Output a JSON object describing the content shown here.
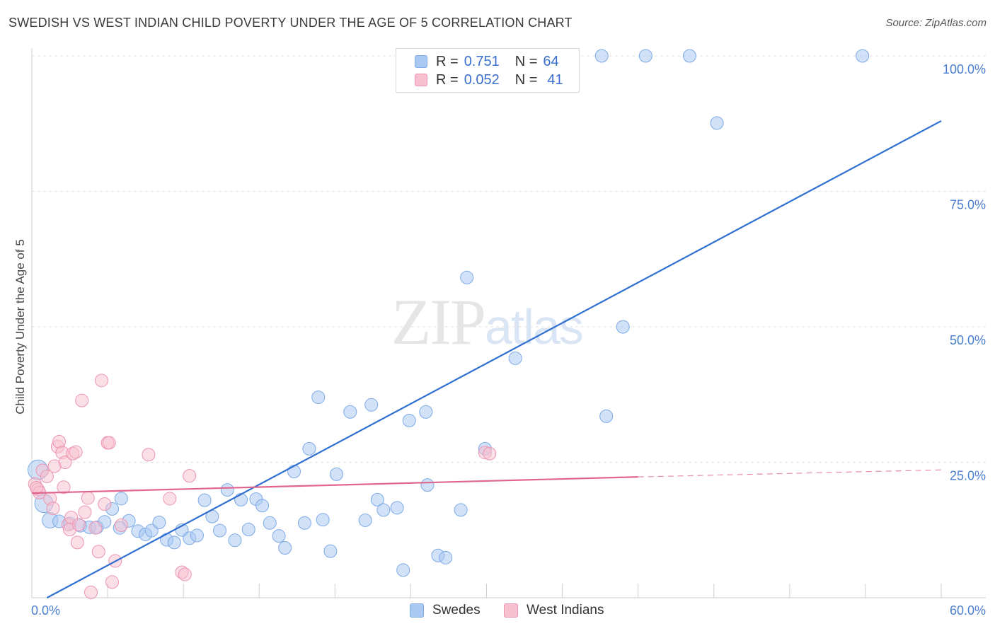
{
  "header": {
    "title": "SWEDISH VS WEST INDIAN CHILD POVERTY UNDER THE AGE OF 5 CORRELATION CHART",
    "source": "Source: ZipAtlas.com"
  },
  "watermark": {
    "zip": "ZIP",
    "atlas": "atlas"
  },
  "legend": {
    "rows": [
      {
        "r_label": "R =",
        "r_value": "0.751",
        "n_label": "N =",
        "n_value": "64",
        "color": "#a9c8f2",
        "border": "#7eaae6"
      },
      {
        "r_label": "R =",
        "r_value": "0.052",
        "n_label": "N =",
        "n_value": "41",
        "color": "#f7bfd0",
        "border": "#ec94b0"
      }
    ]
  },
  "bottom_legend": {
    "items": [
      {
        "label": "Swedes",
        "color": "#a9c8f2",
        "border": "#7eaae6"
      },
      {
        "label": "West Indians",
        "color": "#f7bfd0",
        "border": "#ec94b0"
      }
    ]
  },
  "chart_data": {
    "type": "scatter",
    "title": "SWEDISH VS WEST INDIAN CHILD POVERTY UNDER THE AGE OF 5 CORRELATION CHART",
    "xlabel": "",
    "ylabel": "Child Poverty Under the Age of 5",
    "xlim": [
      0,
      60
    ],
    "ylim": [
      0,
      100
    ],
    "x_tick_labels": [
      "0.0%",
      "60.0%"
    ],
    "y_ticks": [
      25,
      50,
      75,
      100
    ],
    "y_tick_labels": [
      "25.0%",
      "50.0%",
      "75.0%",
      "100.0%"
    ],
    "grid": true,
    "legend_position": "top-center",
    "series": [
      {
        "name": "Swedes",
        "color": "#7eaae6",
        "fill": "rgba(169,200,242,0.55)",
        "trend_line": {
          "x": [
            1,
            60
          ],
          "y": [
            0,
            88
          ]
        },
        "points": [
          {
            "x": 0.4,
            "y": 23.6,
            "r": 14
          },
          {
            "x": 0.8,
            "y": 17.4,
            "r": 13
          },
          {
            "x": 1.2,
            "y": 14.3,
            "r": 11
          },
          {
            "x": 1.8,
            "y": 14.1,
            "r": 9
          },
          {
            "x": 2.5,
            "y": 13.7,
            "r": 9
          },
          {
            "x": 3.2,
            "y": 13.3,
            "r": 9
          },
          {
            "x": 3.8,
            "y": 13.0,
            "r": 9
          },
          {
            "x": 4.3,
            "y": 13.0,
            "r": 9
          },
          {
            "x": 4.8,
            "y": 14.0,
            "r": 9
          },
          {
            "x": 5.3,
            "y": 16.4,
            "r": 9
          },
          {
            "x": 5.9,
            "y": 18.3,
            "r": 9
          },
          {
            "x": 6.4,
            "y": 14.2,
            "r": 9
          },
          {
            "x": 7.0,
            "y": 12.3,
            "r": 9
          },
          {
            "x": 7.5,
            "y": 11.7,
            "r": 9
          },
          {
            "x": 7.9,
            "y": 12.4,
            "r": 9
          },
          {
            "x": 8.4,
            "y": 13.9,
            "r": 9
          },
          {
            "x": 8.9,
            "y": 10.7,
            "r": 9
          },
          {
            "x": 9.4,
            "y": 10.2,
            "r": 9
          },
          {
            "x": 9.9,
            "y": 12.5,
            "r": 9
          },
          {
            "x": 10.4,
            "y": 11.0,
            "r": 9
          },
          {
            "x": 10.9,
            "y": 11.5,
            "r": 9
          },
          {
            "x": 11.4,
            "y": 18.0,
            "r": 9
          },
          {
            "x": 11.9,
            "y": 15.0,
            "r": 9
          },
          {
            "x": 12.4,
            "y": 12.4,
            "r": 9
          },
          {
            "x": 12.9,
            "y": 19.9,
            "r": 9
          },
          {
            "x": 13.4,
            "y": 10.6,
            "r": 9
          },
          {
            "x": 13.8,
            "y": 18.1,
            "r": 9
          },
          {
            "x": 14.3,
            "y": 12.6,
            "r": 9
          },
          {
            "x": 14.8,
            "y": 18.2,
            "r": 9
          },
          {
            "x": 15.2,
            "y": 17.0,
            "r": 9
          },
          {
            "x": 15.7,
            "y": 13.8,
            "r": 9
          },
          {
            "x": 16.3,
            "y": 11.4,
            "r": 9
          },
          {
            "x": 16.7,
            "y": 9.2,
            "r": 9
          },
          {
            "x": 17.3,
            "y": 23.3,
            "r": 9
          },
          {
            "x": 18.0,
            "y": 13.8,
            "r": 9
          },
          {
            "x": 18.3,
            "y": 27.5,
            "r": 9
          },
          {
            "x": 18.9,
            "y": 37.0,
            "r": 9
          },
          {
            "x": 19.2,
            "y": 14.4,
            "r": 9
          },
          {
            "x": 19.7,
            "y": 8.6,
            "r": 9
          },
          {
            "x": 20.1,
            "y": 22.8,
            "r": 9
          },
          {
            "x": 21.0,
            "y": 34.3,
            "r": 9
          },
          {
            "x": 22.0,
            "y": 14.3,
            "r": 9
          },
          {
            "x": 22.4,
            "y": 35.6,
            "r": 9
          },
          {
            "x": 22.8,
            "y": 18.1,
            "r": 9
          },
          {
            "x": 23.2,
            "y": 16.2,
            "r": 9
          },
          {
            "x": 24.1,
            "y": 16.6,
            "r": 9
          },
          {
            "x": 24.5,
            "y": 5.1,
            "r": 9
          },
          {
            "x": 24.9,
            "y": 32.7,
            "r": 9
          },
          {
            "x": 26.0,
            "y": 34.3,
            "r": 9
          },
          {
            "x": 26.1,
            "y": 20.8,
            "r": 9
          },
          {
            "x": 26.8,
            "y": 7.8,
            "r": 9
          },
          {
            "x": 27.3,
            "y": 7.4,
            "r": 9
          },
          {
            "x": 28.3,
            "y": 16.2,
            "r": 9
          },
          {
            "x": 28.7,
            "y": 59.1,
            "r": 9
          },
          {
            "x": 29.9,
            "y": 27.5,
            "r": 9
          },
          {
            "x": 31.9,
            "y": 44.2,
            "r": 9
          },
          {
            "x": 37.6,
            "y": 100,
            "r": 9
          },
          {
            "x": 37.9,
            "y": 33.5,
            "r": 9
          },
          {
            "x": 39.0,
            "y": 50.0,
            "r": 9
          },
          {
            "x": 40.5,
            "y": 100,
            "r": 9
          },
          {
            "x": 43.4,
            "y": 100,
            "r": 9
          },
          {
            "x": 45.2,
            "y": 87.6,
            "r": 9
          },
          {
            "x": 54.8,
            "y": 100,
            "r": 9
          },
          {
            "x": 5.8,
            "y": 12.9,
            "r": 9
          }
        ]
      },
      {
        "name": "West Indians",
        "color": "#ec94b0",
        "fill": "rgba(247,191,208,0.50)",
        "trend_line": {
          "x": [
            0,
            40
          ],
          "y": [
            19.3,
            22.3
          ]
        },
        "trend_line_dashed": {
          "x": [
            40,
            60
          ],
          "y": [
            22.3,
            23.6
          ]
        },
        "points": [
          {
            "x": 0.2,
            "y": 21.0,
            "r": 9
          },
          {
            "x": 0.4,
            "y": 20.0,
            "r": 9
          },
          {
            "x": 0.5,
            "y": 19.4,
            "r": 9
          },
          {
            "x": 0.7,
            "y": 23.5,
            "r": 9
          },
          {
            "x": 1.0,
            "y": 22.4,
            "r": 9
          },
          {
            "x": 1.2,
            "y": 18.3,
            "r": 9
          },
          {
            "x": 1.4,
            "y": 16.5,
            "r": 9
          },
          {
            "x": 1.5,
            "y": 24.3,
            "r": 9
          },
          {
            "x": 1.7,
            "y": 27.9,
            "r": 9
          },
          {
            "x": 1.8,
            "y": 28.8,
            "r": 9
          },
          {
            "x": 2.0,
            "y": 26.8,
            "r": 9
          },
          {
            "x": 2.1,
            "y": 20.4,
            "r": 9
          },
          {
            "x": 2.2,
            "y": 25.0,
            "r": 9
          },
          {
            "x": 2.4,
            "y": 13.5,
            "r": 9
          },
          {
            "x": 2.5,
            "y": 12.6,
            "r": 9
          },
          {
            "x": 2.6,
            "y": 14.8,
            "r": 9
          },
          {
            "x": 2.7,
            "y": 26.6,
            "r": 9
          },
          {
            "x": 2.9,
            "y": 26.9,
            "r": 9
          },
          {
            "x": 3.0,
            "y": 10.2,
            "r": 9
          },
          {
            "x": 3.1,
            "y": 13.5,
            "r": 9
          },
          {
            "x": 3.3,
            "y": 36.4,
            "r": 9
          },
          {
            "x": 3.5,
            "y": 15.8,
            "r": 9
          },
          {
            "x": 3.7,
            "y": 18.4,
            "r": 9
          },
          {
            "x": 3.9,
            "y": 1.0,
            "r": 9
          },
          {
            "x": 4.2,
            "y": 12.9,
            "r": 9
          },
          {
            "x": 4.4,
            "y": 8.5,
            "r": 9
          },
          {
            "x": 4.6,
            "y": 40.1,
            "r": 9
          },
          {
            "x": 4.8,
            "y": 17.3,
            "r": 9
          },
          {
            "x": 5.0,
            "y": 28.6,
            "r": 9
          },
          {
            "x": 5.1,
            "y": 28.6,
            "r": 9
          },
          {
            "x": 5.3,
            "y": 2.9,
            "r": 9
          },
          {
            "x": 5.5,
            "y": 6.8,
            "r": 9
          },
          {
            "x": 5.9,
            "y": 13.4,
            "r": 9
          },
          {
            "x": 7.7,
            "y": 26.4,
            "r": 9
          },
          {
            "x": 9.1,
            "y": 18.3,
            "r": 9
          },
          {
            "x": 9.9,
            "y": 4.7,
            "r": 9
          },
          {
            "x": 10.1,
            "y": 4.3,
            "r": 9
          },
          {
            "x": 10.4,
            "y": 22.5,
            "r": 9
          },
          {
            "x": 29.9,
            "y": 26.8,
            "r": 9
          },
          {
            "x": 30.2,
            "y": 26.6,
            "r": 9
          },
          {
            "x": 0.3,
            "y": 20.3,
            "r": 9
          }
        ]
      }
    ]
  }
}
